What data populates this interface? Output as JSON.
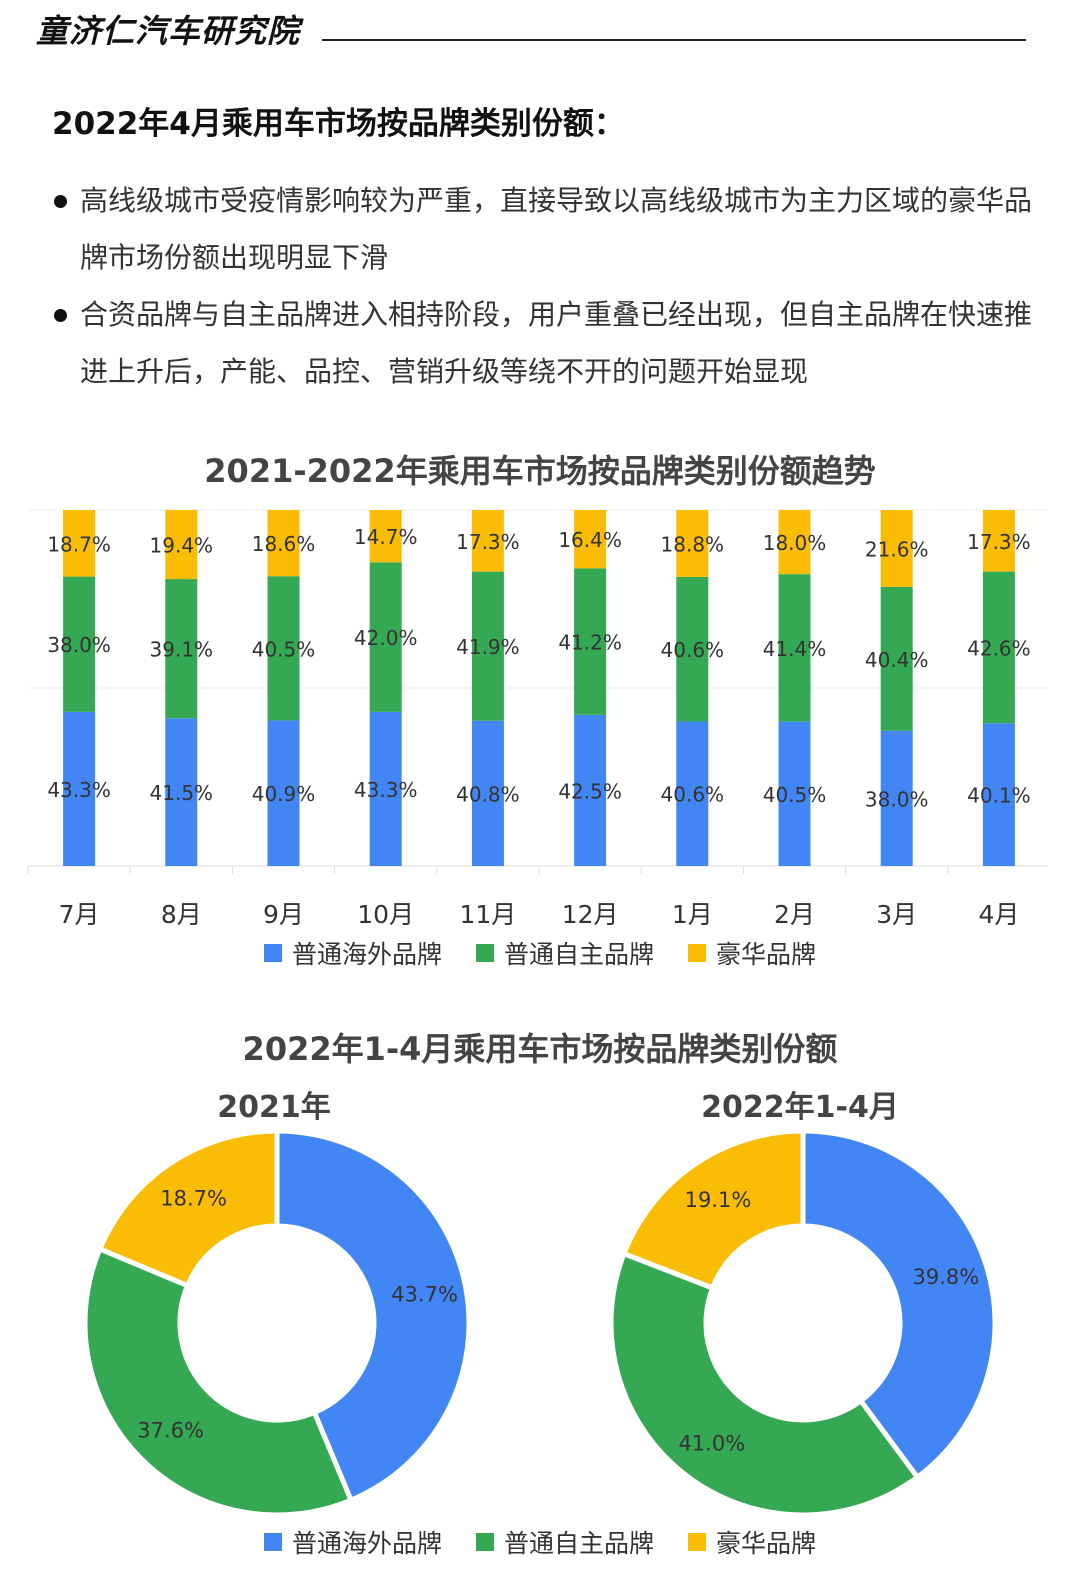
{
  "header": {
    "brand": "童济仁汽车研究院"
  },
  "section_title": "2022年4月乘用车市场按品牌类别份额：",
  "bullets": [
    "高线级城市受疫情影响较为严重，直接导致以高线级城市为主力区域的豪华品牌市场份额出现明显下滑",
    "合资品牌与自主品牌进入相持阶段，用户重叠已经出现，但自主品牌在快速推进上升后，产能、品控、营销升级等绕不开的问题开始显现"
  ],
  "colors": {
    "overseas": "#4285F4",
    "domestic": "#34A853",
    "luxury": "#FBBC04"
  },
  "legend": [
    "普通海外品牌",
    "普通自主品牌",
    "豪华品牌"
  ],
  "chart_data": [
    {
      "type": "bar",
      "stacked": true,
      "title": "2021-2022年乘用车市场按品牌类别份额趋势",
      "categories": [
        "7月",
        "8月",
        "9月",
        "10月",
        "11月",
        "12月",
        "1月",
        "2月",
        "3月",
        "4月"
      ],
      "series": [
        {
          "name": "普通海外品牌",
          "values": [
            43.3,
            41.5,
            40.9,
            43.3,
            40.8,
            42.5,
            40.6,
            40.5,
            38.0,
            40.1
          ]
        },
        {
          "name": "普通自主品牌",
          "values": [
            38.0,
            39.1,
            40.5,
            42.0,
            41.9,
            41.2,
            40.6,
            41.4,
            40.4,
            42.6
          ]
        },
        {
          "name": "豪华品牌",
          "values": [
            18.7,
            19.4,
            18.6,
            14.7,
            17.3,
            16.4,
            18.8,
            18.0,
            21.6,
            17.3
          ]
        }
      ],
      "unit": "%",
      "legend_position": "bottom"
    },
    {
      "type": "pie",
      "donut": true,
      "title": "2022年1-4月乘用车市场按品牌类别份额",
      "subtitle": "2021年",
      "labels": [
        "普通海外品牌",
        "普通自主品牌",
        "豪华品牌"
      ],
      "values": [
        43.7,
        37.6,
        18.7
      ],
      "unit": "%"
    },
    {
      "type": "pie",
      "donut": true,
      "subtitle": "2022年1-4月",
      "labels": [
        "普通海外品牌",
        "普通自主品牌",
        "豪华品牌"
      ],
      "values": [
        39.8,
        41.0,
        19.1
      ],
      "unit": "%",
      "legend_position": "bottom"
    }
  ]
}
